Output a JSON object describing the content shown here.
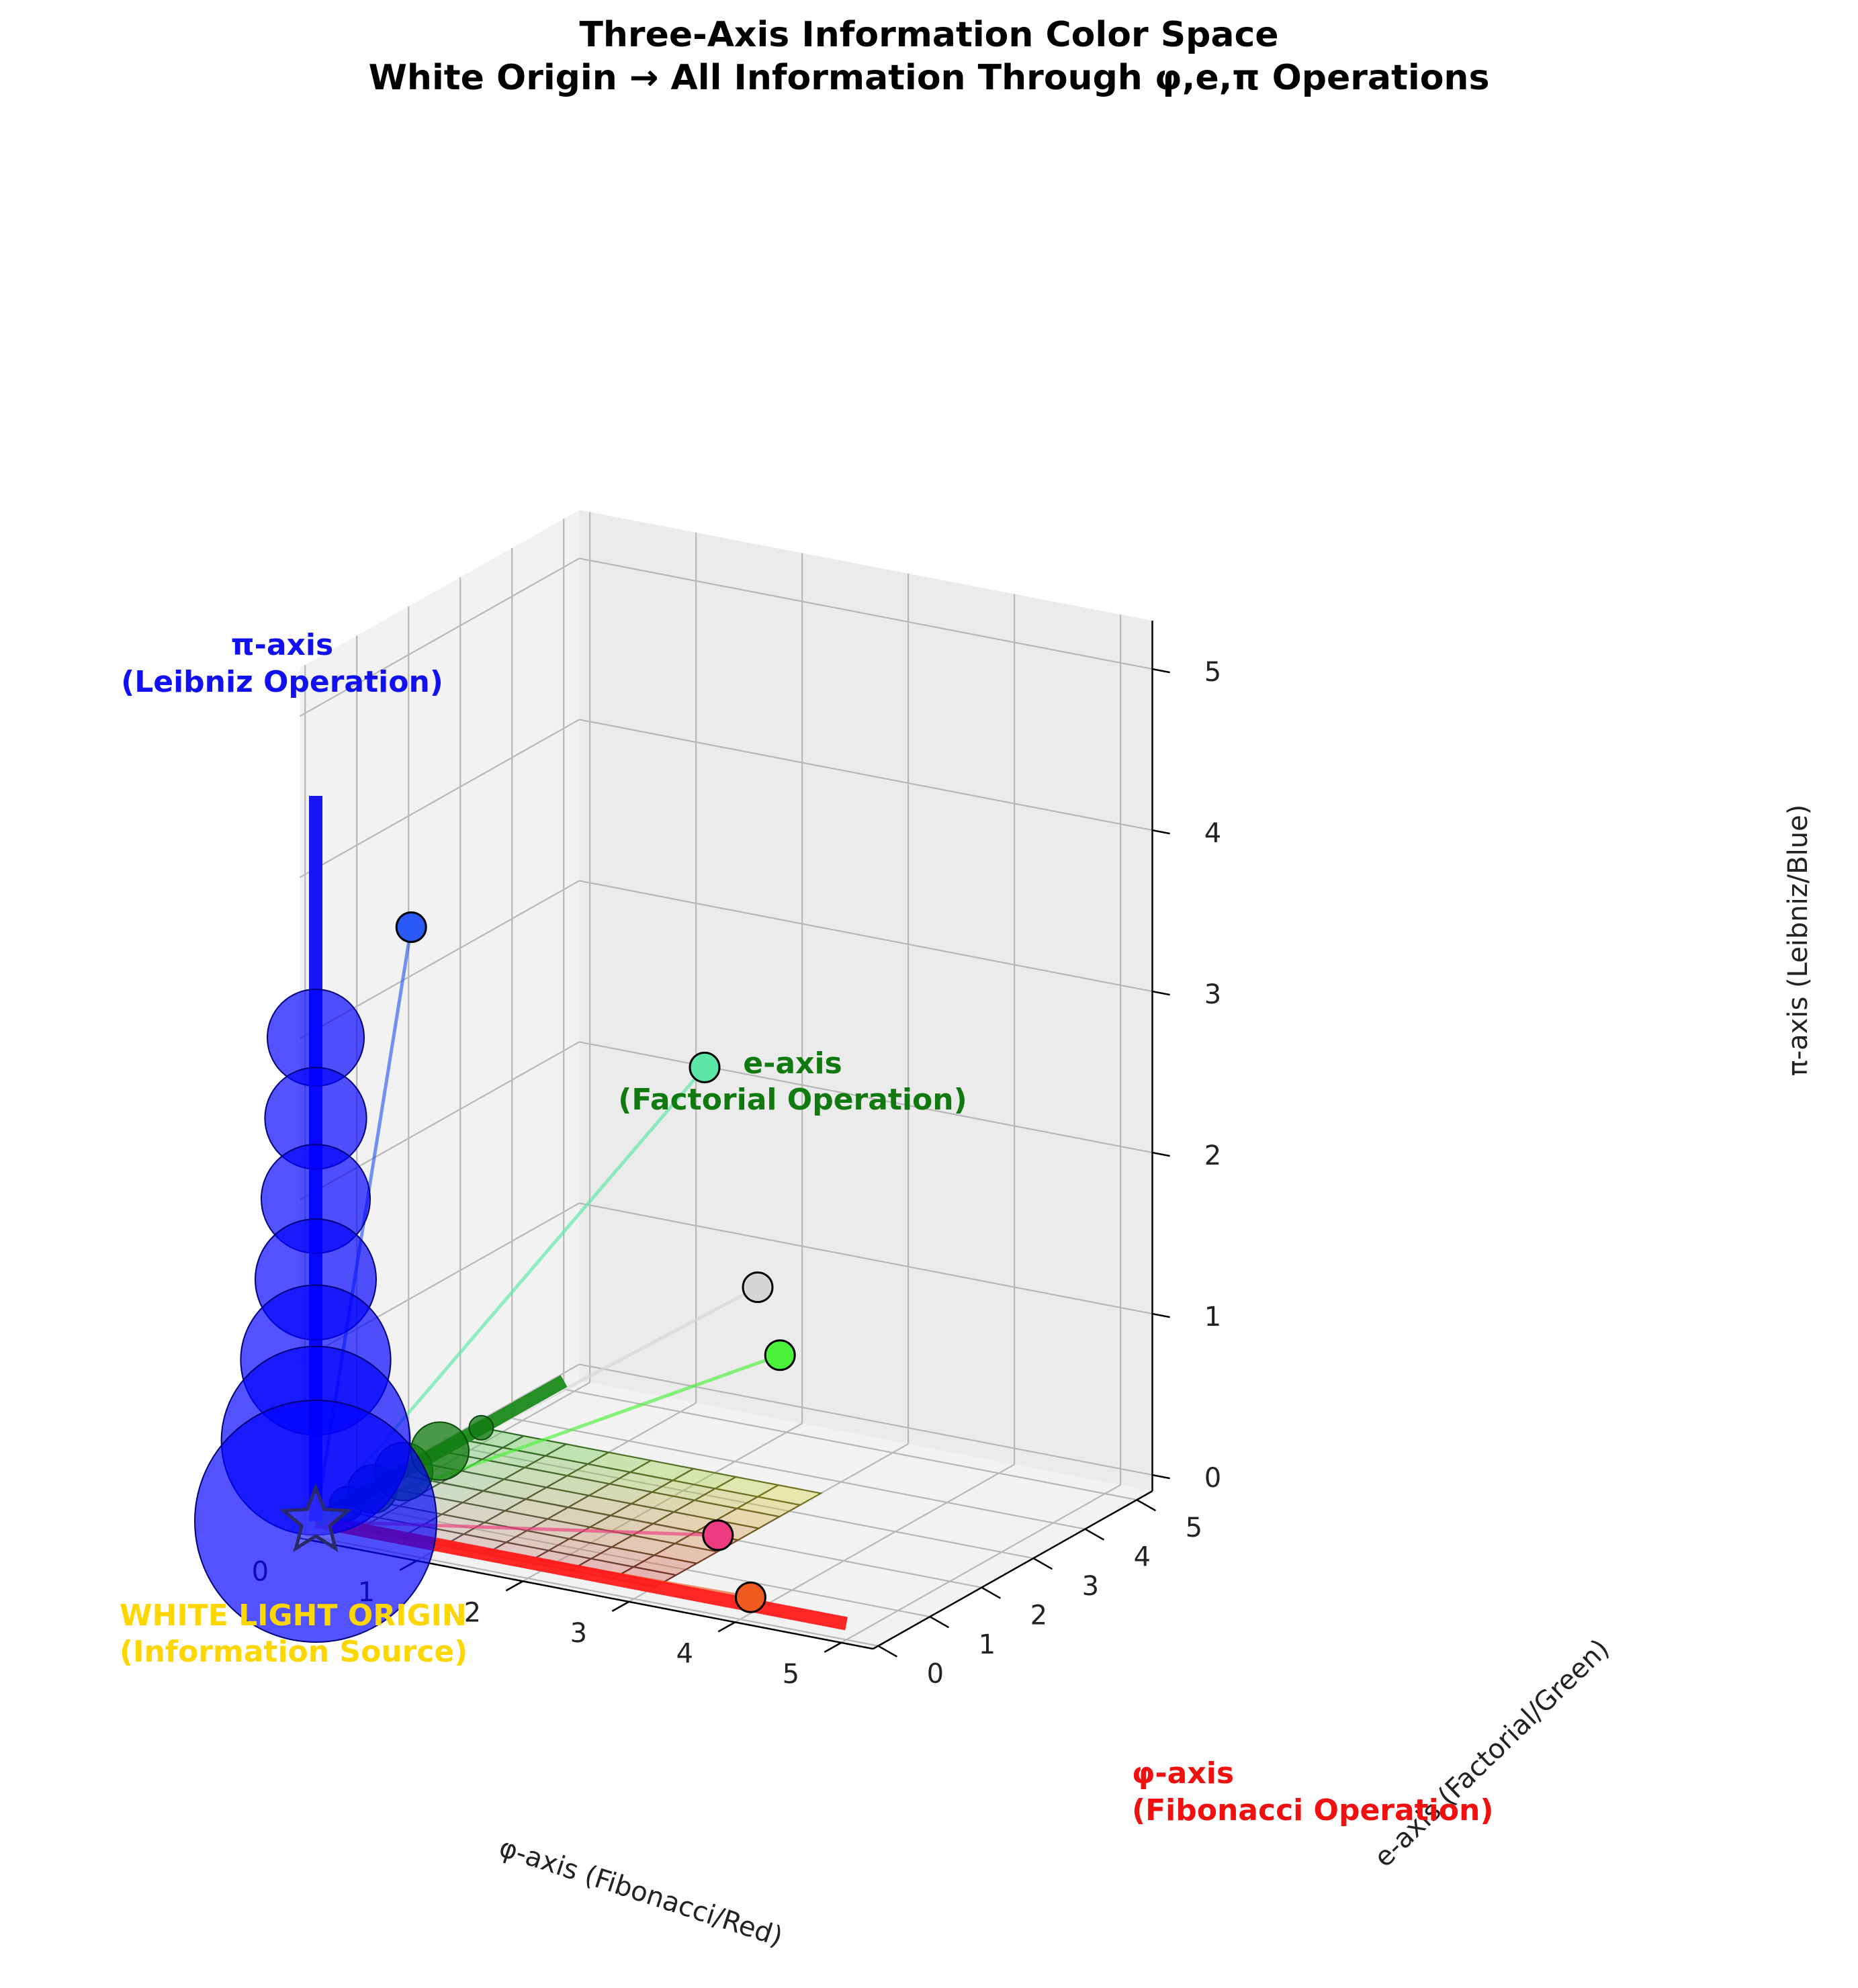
{
  "title": {
    "line1": "Three-Axis Information Color Space",
    "line2": "White Origin → All Information Through φ,e,π Operations"
  },
  "chart_data": {
    "type": "scatter",
    "projection": "3d",
    "axes": {
      "x": {
        "label": "φ-axis (Fibonacci/Red)",
        "range": [
          -0.1,
          5.3
        ],
        "ticks": [
          "0",
          "1",
          "2",
          "3",
          "4",
          "5"
        ]
      },
      "y": {
        "label": "e-axis (Factorial/Green)",
        "range": [
          -0.1,
          5.3
        ],
        "ticks": [
          "0",
          "1",
          "2",
          "3",
          "4",
          "5"
        ]
      },
      "z": {
        "label": "π-axis (Leibniz/Blue)",
        "range": [
          -0.1,
          5.3
        ],
        "ticks": [
          "0",
          "1",
          "2",
          "3",
          "4",
          "5"
        ]
      }
    },
    "grid": true,
    "axis_lines": [
      {
        "name": "φ-axis",
        "from": [
          0,
          0,
          0
        ],
        "to": [
          5,
          0,
          0
        ],
        "color": "#ff1a1a"
      },
      {
        "name": "e-axis",
        "from": [
          0,
          0,
          0
        ],
        "to": [
          0,
          4.8,
          0
        ],
        "color": "#1a8a1a"
      },
      {
        "name": "π-axis",
        "from": [
          0,
          0,
          0
        ],
        "to": [
          0,
          0,
          4.5
        ],
        "color": "#0a0af5"
      }
    ],
    "surface": {
      "extent": [
        0,
        3.2
      ],
      "divisions": 8,
      "corner_colors": [
        "#c0c0c0",
        "#d04040",
        "#40c040",
        "#e0e040"
      ]
    },
    "pi_spheres": [
      {
        "z": 0.0,
        "size": 1.0
      },
      {
        "z": 0.5,
        "size": 0.78
      },
      {
        "z": 1.0,
        "size": 0.62
      },
      {
        "z": 1.5,
        "size": 0.5
      },
      {
        "z": 2.0,
        "size": 0.45
      },
      {
        "z": 2.5,
        "size": 0.42
      },
      {
        "z": 3.0,
        "size": 0.4
      }
    ],
    "e_spheres": [
      {
        "y": 0.6,
        "size": 0.14
      },
      {
        "y": 1.1,
        "size": 0.2
      },
      {
        "y": 1.7,
        "size": 0.24
      },
      {
        "y": 2.4,
        "size": 0.24
      },
      {
        "y": 3.2,
        "size": 0.1
      }
    ],
    "points": [
      {
        "x": 0.9,
        "y": 0.0,
        "z": 3.8,
        "color": "#2b59f5"
      },
      {
        "x": 2.3,
        "y": 2.8,
        "z": 2.6,
        "color": "#5be6a6"
      },
      {
        "x": 2.8,
        "y": 2.8,
        "z": 1.3,
        "color": "#d6d6d6"
      },
      {
        "x": 3.4,
        "y": 2.0,
        "z": 1.1,
        "color": "#4af23a"
      },
      {
        "x": 3.4,
        "y": 0.8,
        "z": 0.2,
        "color": "#ee3a7e"
      },
      {
        "x": 4.0,
        "y": 0.2,
        "z": 0.0,
        "color": "#ee5a20"
      }
    ],
    "annotations": {
      "pi": {
        "line1": "π-axis",
        "line2": "(Leibniz Operation)",
        "color": "#1010f0"
      },
      "e": {
        "line1": "e-axis",
        "line2": "(Factorial Operation)",
        "color": "#107a10"
      },
      "phi": {
        "line1": "φ-axis",
        "line2": "(Fibonacci Operation)",
        "color": "#f01010"
      },
      "origin": {
        "line1": "WHITE LIGHT ORIGIN",
        "line2": "(Information Source)",
        "color": "#ffd700"
      }
    }
  }
}
